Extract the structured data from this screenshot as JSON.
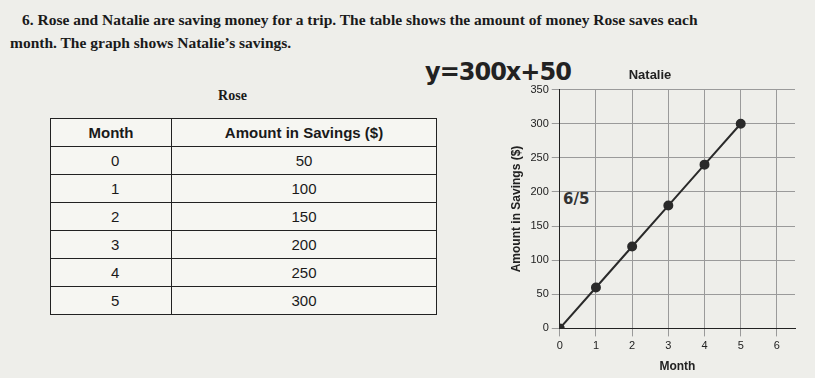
{
  "question": {
    "lines": [
      "6. Rose and Natalie are saving money for a trip.  The table shows the amount of money Rose saves each",
      "month.  The graph shows Natalie’s savings."
    ]
  },
  "table": {
    "title": "Rose",
    "header": [
      "Month",
      "Amount in Savings ($)"
    ],
    "rows": [
      [
        "0",
        "50"
      ],
      [
        "1",
        "100"
      ],
      [
        "2",
        "150"
      ],
      [
        "3",
        "200"
      ],
      [
        "4",
        "250"
      ],
      [
        "5",
        "300"
      ]
    ]
  },
  "handwriting": {
    "equation": "y=300x+50"
  },
  "chart_data": {
    "type": "scatter",
    "title": "Natalie",
    "xlabel": "Month",
    "ylabel": "Amount in Savings ($)",
    "x": [
      0,
      1,
      2,
      3,
      4,
      5
    ],
    "values": [
      0,
      60,
      120,
      180,
      240,
      300
    ],
    "color": "#2a2a2a",
    "line_style": "solid",
    "marker": "circle",
    "xlim": [
      0,
      6.5
    ],
    "xticks": [
      0,
      1,
      2,
      3,
      4,
      5,
      6
    ],
    "ylim": [
      0,
      350
    ],
    "yticks": [
      0,
      50,
      100,
      150,
      200,
      250,
      300,
      350
    ],
    "grid": true,
    "annotations": [
      "6/5"
    ]
  }
}
